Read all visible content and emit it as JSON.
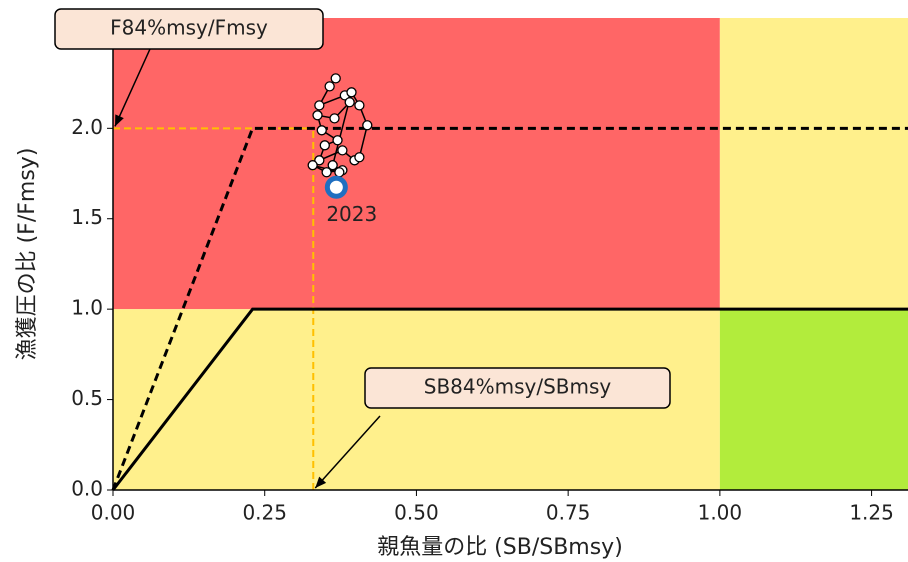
{
  "chart_data": {
    "type": "kobe",
    "x_label": "親魚量の比 (SB/SBmsy)",
    "y_label": "漁獲圧の比 (F/Fmsy)",
    "xlim": [
      0,
      1.31
    ],
    "ylim": [
      0,
      2.61
    ],
    "xticks": [
      {
        "value": 0,
        "label": "0.00"
      },
      {
        "value": 0.25,
        "label": "0.25"
      },
      {
        "value": 0.5,
        "label": "0.50"
      },
      {
        "value": 0.75,
        "label": "0.75"
      },
      {
        "value": 1,
        "label": "1.00"
      },
      {
        "value": 1.25,
        "label": "1.25"
      }
    ],
    "yticks": [
      {
        "value": 0,
        "label": "0.0"
      },
      {
        "value": 0.5,
        "label": "0.5"
      },
      {
        "value": 1,
        "label": "1.0"
      },
      {
        "value": 1.5,
        "label": "1.5"
      },
      {
        "value": 2,
        "label": "2.0"
      }
    ],
    "msy_x": 1,
    "msy_y": 1,
    "zone_colors": {
      "overfished_overfishing": "#ff6666",
      "caution": "#fff08c",
      "healthy": "#b2ec3c"
    },
    "hcr_limit": {
      "x": [
        0,
        0.23,
        1.31
      ],
      "y": [
        0,
        1,
        1
      ],
      "color": "#000000"
    },
    "hcr_dashed": {
      "x": [
        0,
        0.23,
        1.31
      ],
      "y": [
        0,
        2,
        2
      ],
      "color": "#000000"
    },
    "ref_color": "#ffc000",
    "f84_ratio": 2.0,
    "sb84_ratio": 0.33,
    "annotations": [
      {
        "text": "F84%msy/Fmsy",
        "target": "f84"
      },
      {
        "text": "SB84%msy/SBmsy",
        "target": "sb84"
      }
    ],
    "trajectory": {
      "x": [
        0.367,
        0.357,
        0.34,
        0.382,
        0.39,
        0.365,
        0.337,
        0.344,
        0.37,
        0.349,
        0.34,
        0.378,
        0.398,
        0.406,
        0.419,
        0.406,
        0.393,
        0.362,
        0.378,
        0.352,
        0.329,
        0.373,
        0.368
      ],
      "y": [
        2.276,
        2.232,
        2.127,
        2.182,
        2.144,
        2.055,
        2.072,
        1.989,
        1.934,
        1.906,
        1.823,
        1.878,
        1.823,
        1.84,
        2.017,
        2.127,
        2.199,
        1.796,
        1.768,
        1.757,
        1.796,
        1.757,
        1.674
      ],
      "last_label": "2023",
      "last_color": "#1f6fc0"
    }
  }
}
